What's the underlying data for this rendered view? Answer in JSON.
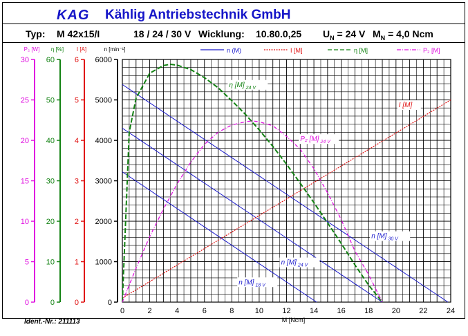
{
  "header": {
    "logo": "KAG",
    "company": "Kählig Antriebstechnik GmbH",
    "typ_label": "Typ:",
    "typ_value": "M 42x15/I",
    "voltages": "18 / 24 / 30 V",
    "wicklung_label": "Wicklung:",
    "wicklung_value": "10.80.0,25",
    "un_label": "U",
    "un_sub": "N",
    "un_value": "= 24 V",
    "mn_label": "M",
    "mn_sub": "N",
    "mn_value": "= 4,0 Ncm"
  },
  "ident": "Ident.-Nr.: 211113",
  "colors": {
    "n": "#1a1acc",
    "I": "#e01010",
    "eta": "#128212",
    "P2": "#e010e0",
    "frame": "#000000"
  },
  "chart_data": {
    "type": "line",
    "xlabel": "M [Ncm]",
    "x_ticks": [
      "0",
      "2",
      "4",
      "6",
      "8",
      "10",
      "12",
      "14",
      "16",
      "18",
      "20",
      "22",
      "24"
    ],
    "xlim": [
      0,
      24
    ],
    "grid": true,
    "legend_position": "top",
    "legend": [
      {
        "key": "n",
        "label": "n (M)",
        "style": "solid"
      },
      {
        "key": "I",
        "label": "I [M]",
        "style": "dotted"
      },
      {
        "key": "eta",
        "label": "η [M]",
        "style": "dashed"
      },
      {
        "key": "P2",
        "label": "P₂ [M]",
        "style": "dashdot"
      }
    ],
    "axes": [
      {
        "key": "P2",
        "label": "P₂ [W]",
        "range": [
          0,
          30
        ],
        "ticks": [
          "0",
          "5",
          "10",
          "15",
          "20",
          "25",
          "30"
        ]
      },
      {
        "key": "eta",
        "label": "η [%]",
        "range": [
          0,
          60
        ],
        "ticks": [
          "0",
          "10",
          "20",
          "30",
          "40",
          "50",
          "60"
        ]
      },
      {
        "key": "I",
        "label": "I [A]",
        "range": [
          0,
          6
        ],
        "ticks": [
          "0",
          "1",
          "2",
          "3",
          "4",
          "5",
          "6"
        ]
      },
      {
        "key": "n",
        "label": "n [min⁻¹]",
        "range": [
          0,
          6000
        ],
        "ticks": [
          "0",
          "1000",
          "2000",
          "3000",
          "4000",
          "5000",
          "6000"
        ]
      }
    ],
    "series": [
      {
        "name": "n [M] 18 V",
        "axis": "n",
        "x": [
          0,
          14.2
        ],
        "y": [
          3220,
          0
        ]
      },
      {
        "name": "n [M] 24 V",
        "axis": "n",
        "x": [
          0,
          19.0
        ],
        "y": [
          4300,
          0
        ]
      },
      {
        "name": "n [M] 30 V",
        "axis": "n",
        "x": [
          0,
          23.8
        ],
        "y": [
          5380,
          0
        ]
      },
      {
        "name": "I [M]",
        "axis": "I",
        "x": [
          0,
          24
        ],
        "y": [
          0.1,
          5.0
        ]
      },
      {
        "name": "η [M] 24 V",
        "axis": "eta",
        "x": [
          0,
          0.5,
          1,
          2,
          3,
          3.5,
          4,
          5,
          6,
          7,
          8,
          9,
          10,
          11,
          12,
          13,
          14,
          15,
          16,
          17,
          18,
          19
        ],
        "y": [
          0,
          42,
          50.4,
          56.6,
          58.5,
          58.8,
          58.6,
          57.5,
          55.5,
          53,
          49.8,
          46.4,
          42.6,
          38.5,
          34.1,
          29.4,
          24.6,
          19.6,
          14.5,
          9.2,
          4.2,
          0
        ]
      },
      {
        "name": "P₂ [M] 24 V",
        "axis": "P2",
        "x": [
          0,
          1,
          2,
          3,
          4,
          5,
          6,
          7,
          8,
          9,
          9.5,
          10,
          11,
          12,
          13,
          14,
          15,
          16,
          17,
          18,
          19
        ],
        "y": [
          0,
          4.2,
          8.1,
          11.5,
          14.6,
          17.3,
          19.5,
          21.0,
          21.9,
          22.3,
          22.4,
          22.3,
          21.8,
          20.5,
          18.9,
          16.5,
          13.5,
          10.2,
          6.3,
          3.4,
          0
        ]
      }
    ],
    "annotations": [
      {
        "text": "η [M]",
        "sub": "24 V",
        "axis": "n",
        "x": 7.8,
        "y": 5320,
        "color_key": "eta"
      },
      {
        "text": "I [M]",
        "sub": "",
        "axis": "n",
        "x": 20.2,
        "y": 4820,
        "color_key": "I"
      },
      {
        "text": "P₂ [M]",
        "sub": "24 V",
        "axis": "n",
        "x": 13.0,
        "y": 3980,
        "color_key": "P2"
      },
      {
        "text": "n [M]",
        "sub": "30 V",
        "axis": "n",
        "x": 18.2,
        "y": 1580,
        "color_key": "n"
      },
      {
        "text": "n [M]",
        "sub": "24 V",
        "axis": "n",
        "x": 11.6,
        "y": 930,
        "color_key": "n"
      },
      {
        "text": "n [M]",
        "sub": "18 V",
        "axis": "n",
        "x": 8.5,
        "y": 440,
        "color_key": "n"
      }
    ]
  }
}
